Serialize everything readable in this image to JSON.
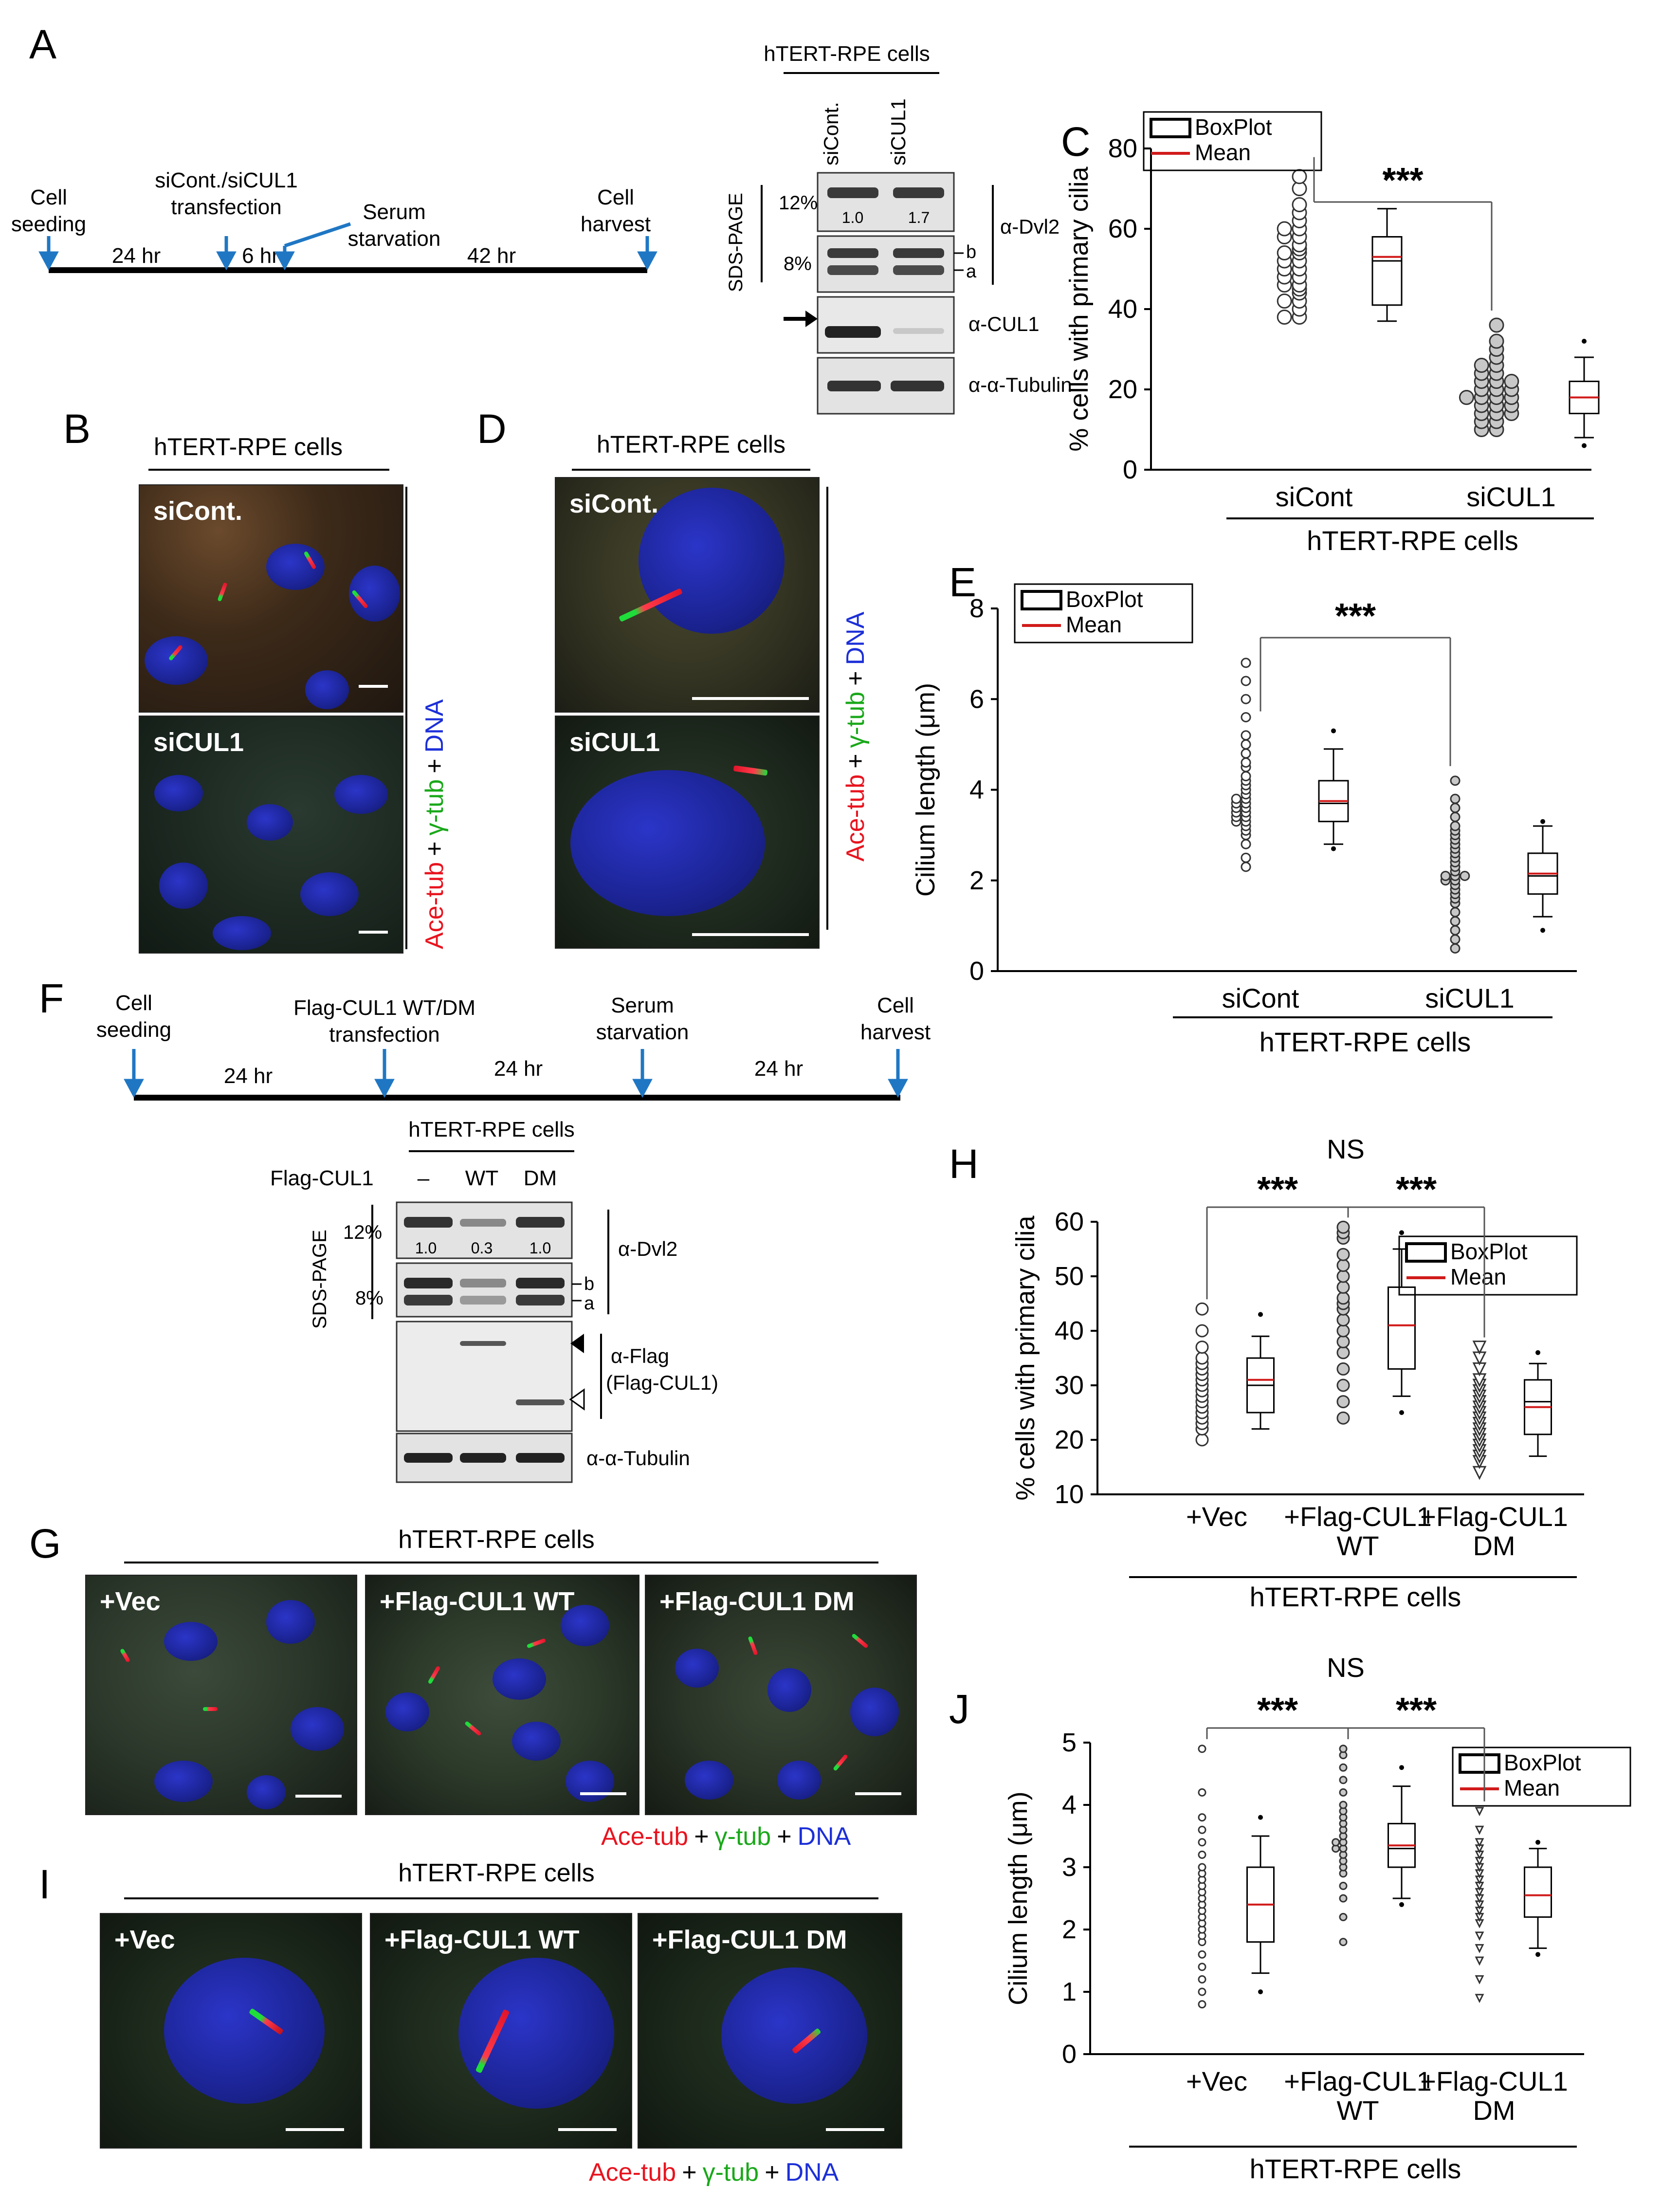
{
  "panel_letters": {
    "A": "A",
    "B": "B",
    "C": "C",
    "D": "D",
    "E": "E",
    "F": "F",
    "G": "G",
    "H": "H",
    "I": "I",
    "J": "J"
  },
  "panel_a": {
    "timeline": {
      "cell_seeding": [
        "Cell",
        "seeding"
      ],
      "transfection": [
        "siCont./siCUL1",
        "transfection"
      ],
      "serum": [
        "Serum",
        "starvation"
      ],
      "harvest": [
        "Cell",
        "harvest"
      ],
      "durations": [
        "24 hr",
        "6 hr",
        "42 hr"
      ]
    },
    "blot": {
      "cell_line": "hTERT-RPE  cells",
      "lanes": [
        "siCont.",
        "siCUL1"
      ],
      "sds_page": "SDS-PAGE",
      "gels": [
        "12%",
        "8%"
      ],
      "quant": [
        "1.0",
        "1.7"
      ],
      "bands": [
        "b",
        "a"
      ],
      "antibodies": [
        "α-Dvl2",
        "α-CUL1",
        "α-α-Tubulin"
      ]
    }
  },
  "panel_b": {
    "title": "hTERT-RPE cells",
    "images": [
      "siCont.",
      "siCUL1"
    ],
    "stain": {
      "ace": "Ace-tub",
      "plus": "+",
      "gamma": "γ-tub",
      "dna": "DNA"
    }
  },
  "panel_d": {
    "title": "hTERT-RPE cells",
    "images": [
      "siCont.",
      "siCUL1"
    ],
    "stain": {
      "ace": "Ace-tub",
      "plus": "+",
      "gamma": "γ-tub",
      "dna": "DNA"
    }
  },
  "panel_f": {
    "timeline": {
      "cell_seeding": [
        "Cell",
        "seeding"
      ],
      "transfection": [
        "Flag-CUL1  WT/DM",
        "transfection"
      ],
      "serum": [
        "Serum",
        "starvation"
      ],
      "harvest": [
        "Cell",
        "harvest"
      ],
      "durations": [
        "24 hr",
        "24 hr",
        "24 hr"
      ]
    },
    "blot": {
      "cell_line": "hTERT-RPE  cells",
      "row_label": "Flag-CUL1",
      "lanes": [
        "–",
        "WT",
        "DM"
      ],
      "sds_page": "SDS-PAGE",
      "gels": [
        "12%",
        "8%"
      ],
      "quant": [
        "1.0",
        "0.3",
        "1.0"
      ],
      "bands": [
        "b",
        "a"
      ],
      "antibodies": [
        "α-Dvl2",
        "α-Flag",
        "(Flag-CUL1)",
        "α-α-Tubulin"
      ]
    }
  },
  "panel_g": {
    "title": "hTERT-RPE cells",
    "images": [
      "+Vec",
      "+Flag-CUL1 WT",
      "+Flag-CUL1 DM"
    ],
    "stain": {
      "ace": "Ace-tub",
      "plus": "+",
      "gamma": "γ-tub",
      "dna": "DNA"
    }
  },
  "panel_i": {
    "title": "hTERT-RPE cells",
    "images": [
      "+Vec",
      "+Flag-CUL1 WT",
      "+Flag-CUL1 DM"
    ],
    "stain": {
      "ace": "Ace-tub",
      "plus": "+",
      "gamma": "γ-tub",
      "dna": "DNA"
    }
  },
  "chart_data": [
    {
      "panel": "C",
      "type": "scatter",
      "ylabel": "% cells with primary cilia",
      "ylim": [
        0,
        80
      ],
      "yticks": [
        0,
        20,
        40,
        60,
        80
      ],
      "categories": [
        "siCont",
        "siCUL1"
      ],
      "group_label": "hTERT-RPE cells",
      "legend": [
        "BoxPlot",
        "Mean"
      ],
      "significance": [
        "***"
      ],
      "box": [
        {
          "min": 37,
          "q1": 41,
          "median": 52,
          "q3": 58,
          "max": 65,
          "mean": 53,
          "outliers": [
            73
          ]
        },
        {
          "min": 8,
          "q1": 14,
          "median": 18,
          "q3": 22,
          "max": 28,
          "mean": 18,
          "outliers": [
            32,
            6
          ]
        }
      ],
      "points": [
        [
          38,
          38,
          40,
          42,
          42,
          44,
          45,
          46,
          46,
          48,
          48,
          50,
          50,
          52,
          52,
          54,
          54,
          55,
          56,
          58,
          58,
          60,
          60,
          62,
          64,
          66,
          70,
          73
        ],
        [
          10,
          10,
          12,
          12,
          14,
          14,
          14,
          16,
          16,
          16,
          18,
          18,
          18,
          18,
          20,
          20,
          20,
          22,
          22,
          22,
          24,
          24,
          26,
          26,
          28,
          30,
          32,
          36
        ]
      ]
    },
    {
      "panel": "E",
      "type": "scatter",
      "ylabel": "Cilium length (μm)",
      "ylim": [
        0,
        8
      ],
      "yticks": [
        0,
        2,
        4,
        6,
        8
      ],
      "categories": [
        "siCont",
        "siCUL1"
      ],
      "group_label": "hTERT-RPE cells",
      "legend": [
        "BoxPlot",
        "Mean"
      ],
      "significance": [
        "***"
      ],
      "box": [
        {
          "min": 2.8,
          "q1": 3.3,
          "median": 3.7,
          "q3": 4.2,
          "max": 4.9,
          "mean": 3.75,
          "outliers": [
            5.3,
            2.7
          ]
        },
        {
          "min": 1.2,
          "q1": 1.7,
          "median": 2.1,
          "q3": 2.6,
          "max": 3.2,
          "mean": 2.15,
          "outliers": [
            3.3,
            0.9
          ]
        }
      ],
      "points": [
        [
          2.3,
          2.5,
          2.8,
          3.0,
          3.1,
          3.2,
          3.3,
          3.3,
          3.4,
          3.4,
          3.5,
          3.5,
          3.6,
          3.6,
          3.7,
          3.7,
          3.8,
          3.8,
          3.9,
          4.0,
          4.1,
          4.2,
          4.3,
          4.5,
          4.6,
          4.8,
          5.0,
          5.2,
          5.6,
          6.0,
          6.4,
          6.8
        ],
        [
          0.5,
          0.7,
          0.9,
          1.1,
          1.3,
          1.5,
          1.6,
          1.7,
          1.8,
          1.9,
          2.0,
          2.0,
          2.1,
          2.1,
          2.1,
          2.2,
          2.3,
          2.4,
          2.5,
          2.6,
          2.7,
          2.8,
          2.9,
          3.0,
          3.1,
          3.2,
          3.4,
          3.6,
          3.8,
          4.2
        ]
      ]
    },
    {
      "panel": "H",
      "type": "scatter",
      "ylabel": "% cells with primary cilia",
      "ylim": [
        10,
        60
      ],
      "yticks": [
        10,
        20,
        30,
        40,
        50,
        60
      ],
      "categories": [
        "+Vec",
        "+Flag-CUL1 WT",
        "+Flag-CUL1 DM"
      ],
      "group_label": "hTERT-RPE cells",
      "legend": [
        "BoxPlot",
        "Mean"
      ],
      "significance": [
        "***",
        "***",
        "NS"
      ],
      "box": [
        {
          "min": 22,
          "q1": 25,
          "median": 30,
          "q3": 35,
          "max": 39,
          "mean": 31,
          "outliers": [
            43
          ]
        },
        {
          "min": 28,
          "q1": 33,
          "median": 41,
          "q3": 48,
          "max": 55,
          "mean": 41,
          "outliers": [
            58,
            25
          ]
        },
        {
          "min": 17,
          "q1": 21,
          "median": 27,
          "q3": 31,
          "max": 34,
          "mean": 26,
          "outliers": [
            36
          ]
        }
      ],
      "points": [
        [
          20,
          22,
          23,
          24,
          25,
          26,
          27,
          28,
          29,
          30,
          31,
          32,
          33,
          34,
          35,
          37,
          40,
          44
        ],
        [
          24,
          27,
          30,
          33,
          36,
          38,
          40,
          42,
          44,
          45,
          46,
          48,
          50,
          52,
          54,
          57,
          58,
          59
        ],
        [
          14,
          16,
          17,
          18,
          19,
          20,
          21,
          22,
          23,
          24,
          25,
          26,
          27,
          28,
          29,
          30,
          31,
          33,
          35,
          37
        ]
      ]
    },
    {
      "panel": "J",
      "type": "scatter",
      "ylabel": "Cilium length (μm)",
      "ylim": [
        0,
        5
      ],
      "yticks": [
        0,
        1,
        2,
        3,
        4,
        5
      ],
      "categories": [
        "+Vec",
        "+Flag-CUL1 WT",
        "+Flag-CUL1 DM"
      ],
      "group_label": "hTERT-RPE cells",
      "legend": [
        "BoxPlot",
        "Mean"
      ],
      "significance": [
        "***",
        "***",
        "NS"
      ],
      "box": [
        {
          "min": 1.3,
          "q1": 1.8,
          "median": 2.4,
          "q3": 3.0,
          "max": 3.5,
          "mean": 2.4,
          "outliers": [
            3.8,
            1.0
          ]
        },
        {
          "min": 2.5,
          "q1": 3.0,
          "median": 3.3,
          "q3": 3.7,
          "max": 4.3,
          "mean": 3.35,
          "outliers": [
            4.6,
            2.4
          ]
        },
        {
          "min": 1.7,
          "q1": 2.2,
          "median": 2.55,
          "q3": 3.0,
          "max": 3.3,
          "mean": 2.55,
          "outliers": [
            3.4,
            1.6
          ]
        }
      ],
      "points": [
        [
          0.8,
          1.0,
          1.2,
          1.4,
          1.6,
          1.8,
          1.9,
          2.0,
          2.1,
          2.2,
          2.3,
          2.4,
          2.5,
          2.6,
          2.7,
          2.8,
          2.9,
          3.0,
          3.2,
          3.4,
          3.6,
          3.8,
          4.2,
          4.9
        ],
        [
          1.8,
          2.2,
          2.5,
          2.7,
          2.9,
          3.0,
          3.1,
          3.2,
          3.3,
          3.3,
          3.4,
          3.4,
          3.5,
          3.6,
          3.7,
          3.8,
          3.9,
          4.0,
          4.2,
          4.4,
          4.6,
          4.8,
          4.9
        ],
        [
          0.9,
          1.2,
          1.5,
          1.7,
          1.9,
          2.1,
          2.2,
          2.3,
          2.4,
          2.5,
          2.6,
          2.7,
          2.8,
          2.9,
          3.0,
          3.1,
          3.2,
          3.3,
          3.4,
          3.6,
          3.9
        ]
      ]
    }
  ]
}
